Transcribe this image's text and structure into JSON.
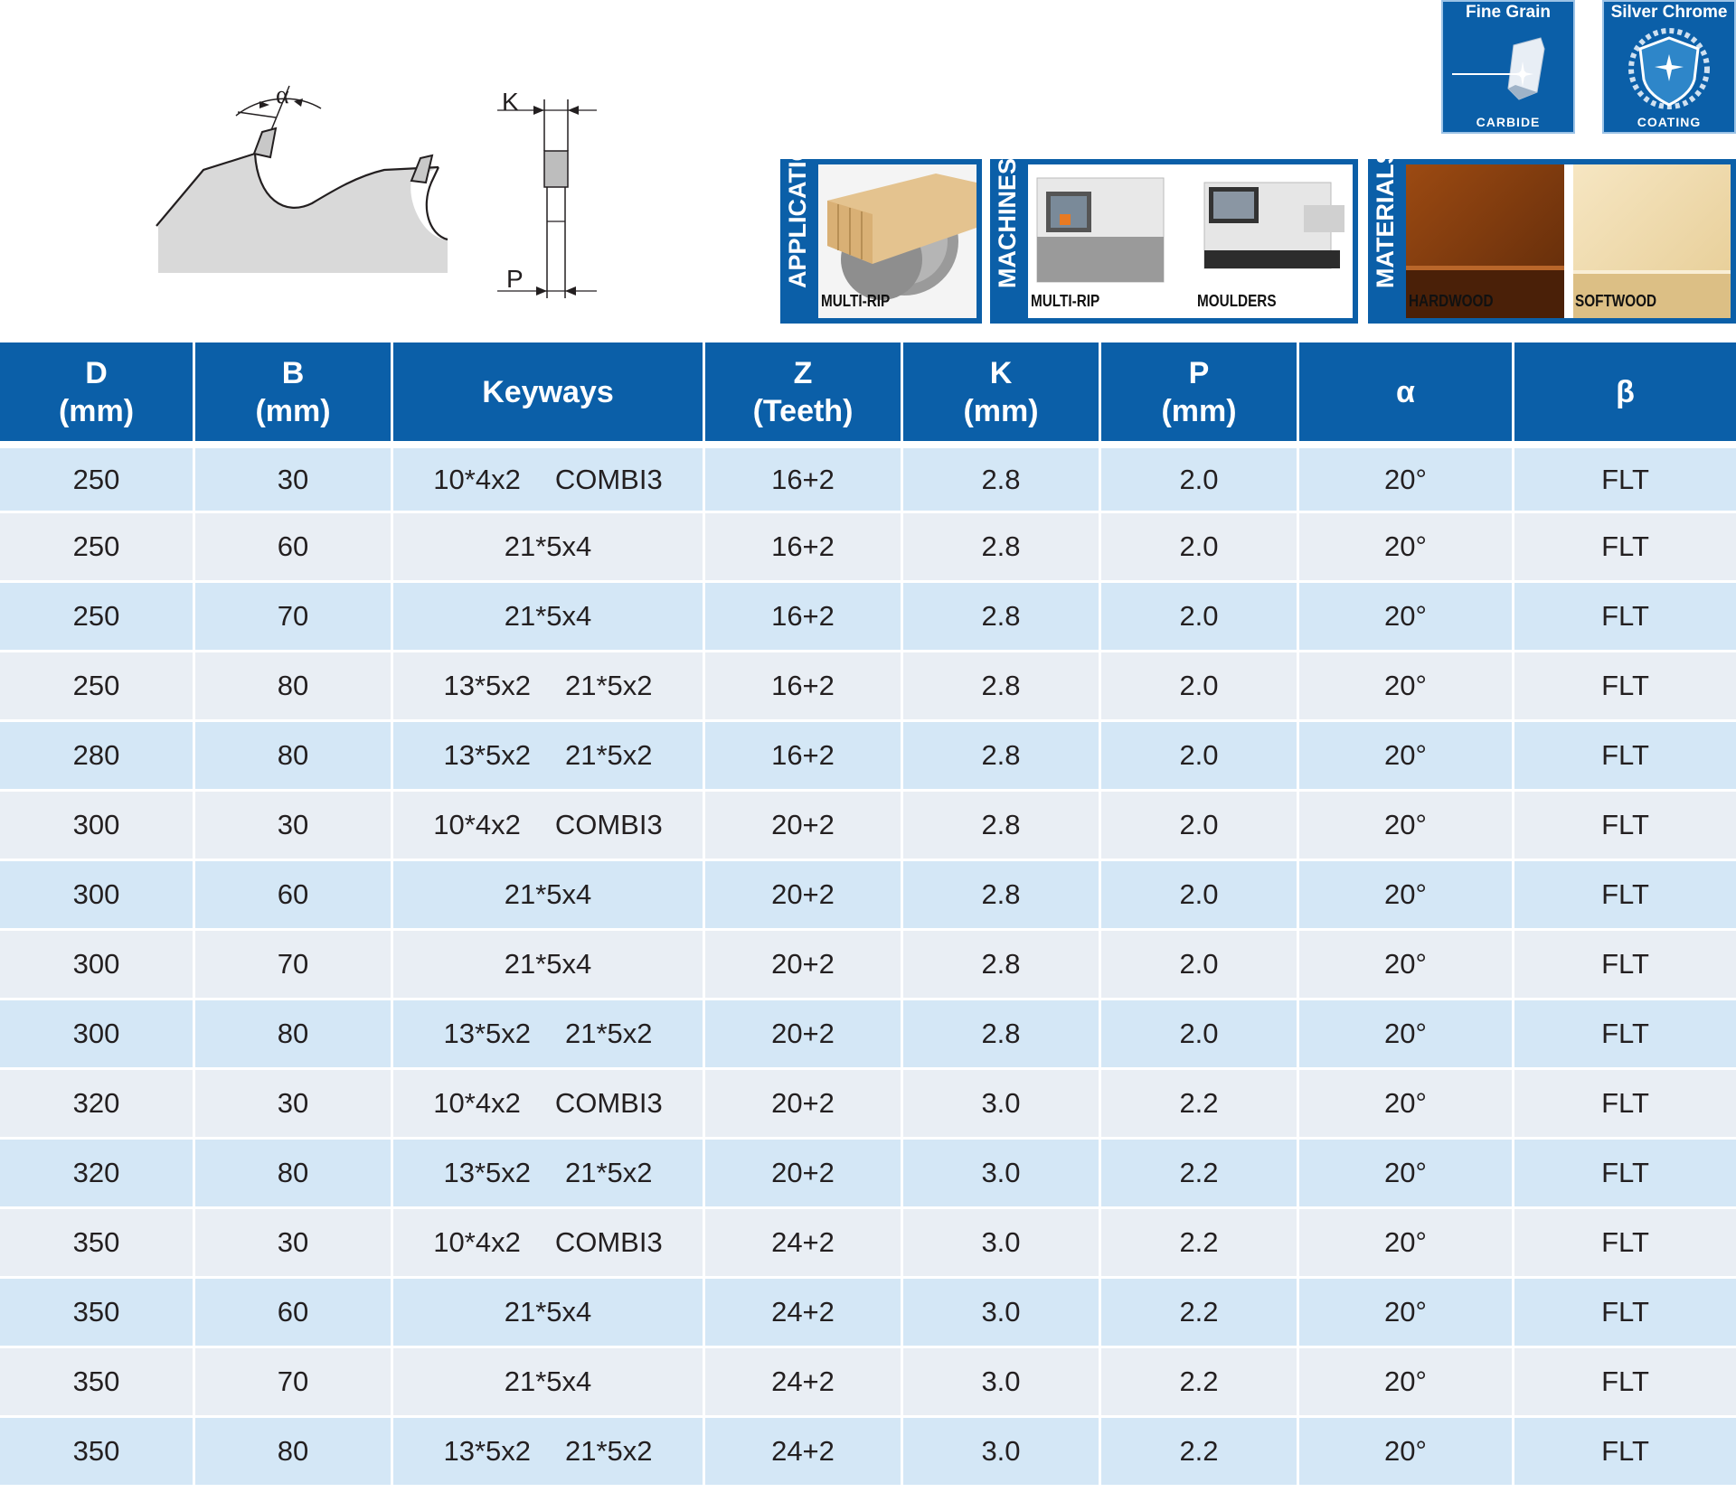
{
  "diagrams": {
    "tooth": {
      "angle_label": "α"
    },
    "thickness": {
      "k_label": "K",
      "p_label": "P"
    }
  },
  "badges": {
    "carbide": {
      "title": "Fine Grain",
      "subtitle": "CARBIDE",
      "icon": "carbide-tip-icon"
    },
    "coating": {
      "title": "Silver Chrome",
      "subtitle": "COATING",
      "icon": "shield-sawblade-icon"
    }
  },
  "panels": {
    "applications": {
      "label": "APPLICATIONS",
      "items": [
        {
          "caption": "MULTI-RIP"
        }
      ]
    },
    "machines": {
      "label": "MACHINES",
      "items": [
        {
          "caption": "MULTI-RIP"
        },
        {
          "caption": "MOULDERS"
        }
      ]
    },
    "materials": {
      "label": "MATERIALS",
      "items": [
        {
          "caption": "HARDWOOD"
        },
        {
          "caption": "SOFTWOOD"
        }
      ]
    }
  },
  "table": {
    "headers": [
      {
        "line1": "D",
        "line2": "(mm)"
      },
      {
        "line1": "B",
        "line2": "(mm)"
      },
      {
        "line1": "Keyways",
        "line2": ""
      },
      {
        "line1": "Z",
        "line2": "(Teeth)"
      },
      {
        "line1": "K",
        "line2": "(mm)"
      },
      {
        "line1": "P",
        "line2": "(mm)"
      },
      {
        "line1": "α",
        "line2": ""
      },
      {
        "line1": "β",
        "line2": ""
      }
    ],
    "rows": [
      {
        "d": "250",
        "b": "30",
        "keyways": [
          "10*4x2",
          "COMBI3"
        ],
        "z": "16+2",
        "k": "2.8",
        "p": "2.0",
        "alpha": "20°",
        "beta": "FLT"
      },
      {
        "d": "250",
        "b": "60",
        "keyways": [
          "21*5x4"
        ],
        "z": "16+2",
        "k": "2.8",
        "p": "2.0",
        "alpha": "20°",
        "beta": "FLT"
      },
      {
        "d": "250",
        "b": "70",
        "keyways": [
          "21*5x4"
        ],
        "z": "16+2",
        "k": "2.8",
        "p": "2.0",
        "alpha": "20°",
        "beta": "FLT"
      },
      {
        "d": "250",
        "b": "80",
        "keyways": [
          "13*5x2",
          "21*5x2"
        ],
        "z": "16+2",
        "k": "2.8",
        "p": "2.0",
        "alpha": "20°",
        "beta": "FLT"
      },
      {
        "d": "280",
        "b": "80",
        "keyways": [
          "13*5x2",
          "21*5x2"
        ],
        "z": "16+2",
        "k": "2.8",
        "p": "2.0",
        "alpha": "20°",
        "beta": "FLT"
      },
      {
        "d": "300",
        "b": "30",
        "keyways": [
          "10*4x2",
          "COMBI3"
        ],
        "z": "20+2",
        "k": "2.8",
        "p": "2.0",
        "alpha": "20°",
        "beta": "FLT"
      },
      {
        "d": "300",
        "b": "60",
        "keyways": [
          "21*5x4"
        ],
        "z": "20+2",
        "k": "2.8",
        "p": "2.0",
        "alpha": "20°",
        "beta": "FLT"
      },
      {
        "d": "300",
        "b": "70",
        "keyways": [
          "21*5x4"
        ],
        "z": "20+2",
        "k": "2.8",
        "p": "2.0",
        "alpha": "20°",
        "beta": "FLT"
      },
      {
        "d": "300",
        "b": "80",
        "keyways": [
          "13*5x2",
          "21*5x2"
        ],
        "z": "20+2",
        "k": "2.8",
        "p": "2.0",
        "alpha": "20°",
        "beta": "FLT"
      },
      {
        "d": "320",
        "b": "30",
        "keyways": [
          "10*4x2",
          "COMBI3"
        ],
        "z": "20+2",
        "k": "3.0",
        "p": "2.2",
        "alpha": "20°",
        "beta": "FLT"
      },
      {
        "d": "320",
        "b": "80",
        "keyways": [
          "13*5x2",
          "21*5x2"
        ],
        "z": "20+2",
        "k": "3.0",
        "p": "2.2",
        "alpha": "20°",
        "beta": "FLT"
      },
      {
        "d": "350",
        "b": "30",
        "keyways": [
          "10*4x2",
          "COMBI3"
        ],
        "z": "24+2",
        "k": "3.0",
        "p": "2.2",
        "alpha": "20°",
        "beta": "FLT"
      },
      {
        "d": "350",
        "b": "60",
        "keyways": [
          "21*5x4"
        ],
        "z": "24+2",
        "k": "3.0",
        "p": "2.2",
        "alpha": "20°",
        "beta": "FLT"
      },
      {
        "d": "350",
        "b": "70",
        "keyways": [
          "21*5x4"
        ],
        "z": "24+2",
        "k": "3.0",
        "p": "2.2",
        "alpha": "20°",
        "beta": "FLT"
      },
      {
        "d": "350",
        "b": "80",
        "keyways": [
          "13*5x2",
          "21*5x2"
        ],
        "z": "24+2",
        "k": "3.0",
        "p": "2.2",
        "alpha": "20°",
        "beta": "FLT"
      }
    ]
  },
  "colors": {
    "brand_blue": "#0b5fa8",
    "row_light_blue": "#d4e7f6",
    "row_light_grey": "#e9eef4"
  }
}
